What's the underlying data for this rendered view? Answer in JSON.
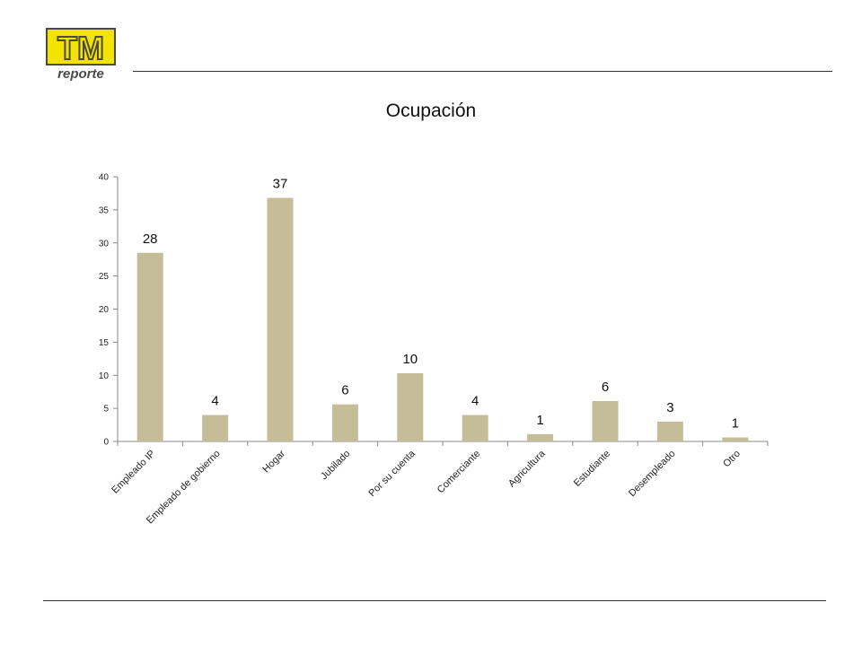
{
  "logo": {
    "main_text": "TM",
    "sub_text": "reporte"
  },
  "colors": {
    "bar": "#c4bd97",
    "logo_fill": "#f2e400",
    "logo_ink": "#4a4a4a",
    "axis": "#888888"
  },
  "chart_data": {
    "type": "bar",
    "title": "Ocupación",
    "xlabel": "",
    "ylabel": "",
    "ylim": [
      0,
      40
    ],
    "yticks": [
      0,
      5,
      10,
      15,
      20,
      25,
      30,
      35,
      40
    ],
    "grid": false,
    "legend": "none",
    "categories": [
      "Empleado IP",
      "Empleado de gobierno",
      "Hogar",
      "Jubilado",
      "Por su cuenta",
      "Comerciante",
      "Agricultura",
      "Estudiante",
      "Desempleado",
      "Otro"
    ],
    "values": [
      28.5,
      4,
      36.8,
      5.6,
      10.3,
      4,
      1.1,
      6.1,
      3,
      0.6
    ],
    "data_labels": [
      "28",
      "4",
      "37",
      "6",
      "10",
      "4",
      "1",
      "6",
      "3",
      "1"
    ]
  }
}
